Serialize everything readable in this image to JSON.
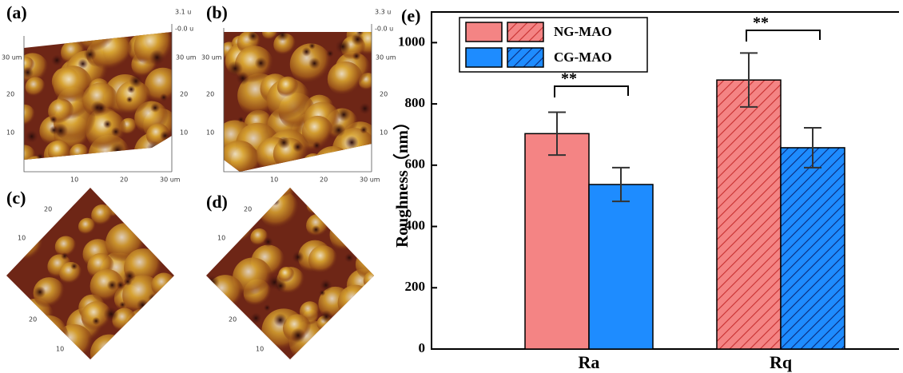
{
  "panels": [
    {
      "label": "(a)",
      "z_labels": [
        "3.1 u",
        "-0.0 u"
      ],
      "y_ticks": [
        "30 um",
        "20",
        "10"
      ],
      "x_ticks": [
        "10",
        "20",
        "30 um"
      ]
    },
    {
      "label": "(b)",
      "z_labels": [
        "3.3 u",
        "-0.0 u"
      ],
      "y_ticks": [
        "30 um",
        "20",
        "10"
      ],
      "x_ticks": [
        "10",
        "20",
        "30 um"
      ]
    },
    {
      "label": "(c)",
      "ticks": [
        "20",
        "10",
        "20",
        "10"
      ]
    },
    {
      "label": "(d)",
      "ticks": [
        "20",
        "10",
        "20",
        "10"
      ]
    }
  ],
  "chart_data": {
    "type": "bar",
    "panel_label": "(e)",
    "y_label": "Roughness（nm）",
    "categories": [
      "Ra",
      "Rq"
    ],
    "hatch": [
      false,
      true
    ],
    "series": [
      {
        "name": "NG-MAO",
        "color": "#f48484",
        "hatch_color": "#c83030",
        "values": [
          703,
          878
        ],
        "errors": [
          70,
          88
        ]
      },
      {
        "name": "CG-MAO",
        "color": "#1e8cff",
        "hatch_color": "#0a2a7a",
        "values": [
          537,
          657
        ],
        "errors": [
          55,
          65
        ]
      }
    ],
    "annotations": [
      "**",
      "**"
    ],
    "ylim": [
      0,
      1100
    ],
    "yticks": [
      0,
      200,
      400,
      600,
      800,
      1000
    ]
  }
}
